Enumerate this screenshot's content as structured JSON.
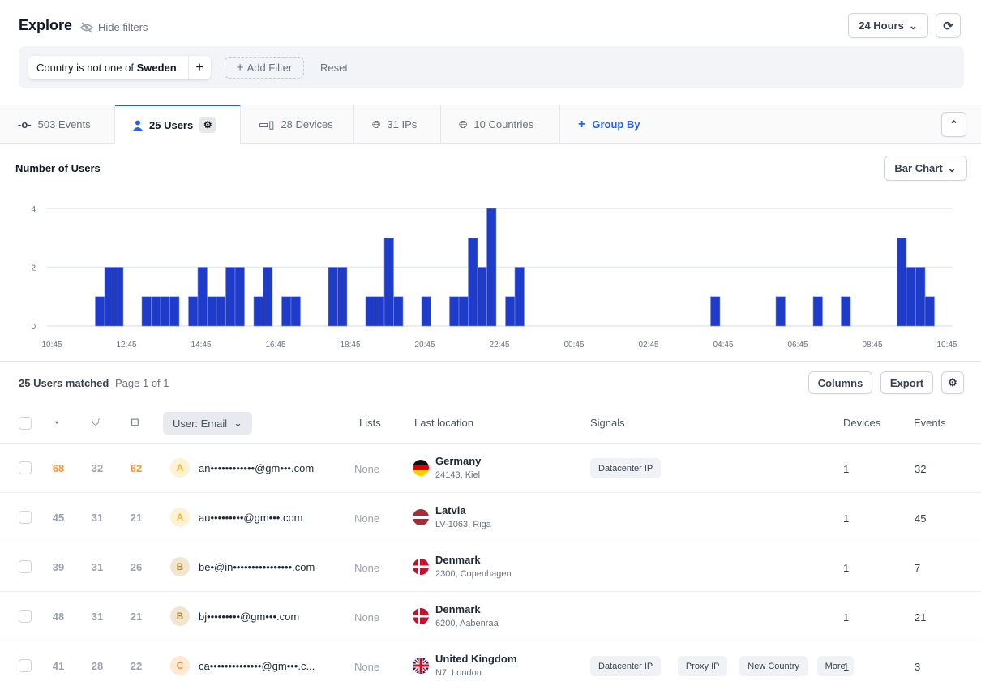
{
  "header": {
    "title": "Explore",
    "hide_filters": "Hide filters",
    "time_range": "24 Hours"
  },
  "filters": {
    "chip_prefix": "Country is not one of",
    "chip_value": "Sweden",
    "add_filter": "Add Filter",
    "reset": "Reset"
  },
  "tabs": [
    {
      "label": "503 Events",
      "icon": "event-icon"
    },
    {
      "label": "25 Users",
      "icon": "user-icon",
      "active": true
    },
    {
      "label": "28 Devices",
      "icon": "devices-icon"
    },
    {
      "label": "31 IPs",
      "icon": "globe-icon"
    },
    {
      "label": "10 Countries",
      "icon": "globe-icon"
    }
  ],
  "group_by": "Group By",
  "chart_title": "Number of Users",
  "chart_type_select": "Bar Chart",
  "chart_data": {
    "type": "bar",
    "title": "Number of Users",
    "ylim": [
      0,
      4
    ],
    "yticks": [
      "0",
      "2",
      "4"
    ],
    "xticks": [
      "10:45",
      "12:45",
      "14:45",
      "16:45",
      "18:45",
      "20:45",
      "22:45",
      "00:45",
      "02:45",
      "04:45",
      "06:45",
      "08:45",
      "10:45"
    ],
    "bucket_minutes": 15,
    "color": "#1f3bc9",
    "grid": true,
    "bars": [
      {
        "t": "12:00",
        "v": 1
      },
      {
        "t": "12:15",
        "v": 2
      },
      {
        "t": "12:30",
        "v": 2
      },
      {
        "t": "13:15",
        "v": 1
      },
      {
        "t": "13:30",
        "v": 1
      },
      {
        "t": "13:45",
        "v": 1
      },
      {
        "t": "14:00",
        "v": 1
      },
      {
        "t": "14:30",
        "v": 1
      },
      {
        "t": "14:45",
        "v": 2
      },
      {
        "t": "15:00",
        "v": 1
      },
      {
        "t": "15:15",
        "v": 1
      },
      {
        "t": "15:30",
        "v": 2
      },
      {
        "t": "15:45",
        "v": 2
      },
      {
        "t": "16:15",
        "v": 1
      },
      {
        "t": "16:30",
        "v": 2
      },
      {
        "t": "17:00",
        "v": 1
      },
      {
        "t": "17:15",
        "v": 1
      },
      {
        "t": "18:15",
        "v": 2
      },
      {
        "t": "18:30",
        "v": 2
      },
      {
        "t": "19:15",
        "v": 1
      },
      {
        "t": "19:30",
        "v": 1
      },
      {
        "t": "19:45",
        "v": 3
      },
      {
        "t": "20:00",
        "v": 1
      },
      {
        "t": "20:45",
        "v": 1
      },
      {
        "t": "21:30",
        "v": 1
      },
      {
        "t": "21:45",
        "v": 1
      },
      {
        "t": "22:00",
        "v": 3
      },
      {
        "t": "22:15",
        "v": 2
      },
      {
        "t": "22:30",
        "v": 4
      },
      {
        "t": "23:00",
        "v": 1
      },
      {
        "t": "23:15",
        "v": 2
      },
      {
        "t": "04:30",
        "v": 1
      },
      {
        "t": "06:15",
        "v": 1
      },
      {
        "t": "07:15",
        "v": 1
      },
      {
        "t": "08:00",
        "v": 1
      },
      {
        "t": "09:30",
        "v": 3
      },
      {
        "t": "09:45",
        "v": 2
      },
      {
        "t": "10:00",
        "v": 2
      },
      {
        "t": "10:15",
        "v": 1
      }
    ]
  },
  "table": {
    "matched": "25 Users matched",
    "page": "Page 1 of 1",
    "columns_btn": "Columns",
    "export_btn": "Export",
    "headers": {
      "email": "User: Email",
      "lists": "Lists",
      "location": "Last location",
      "signals": "Signals",
      "devices": "Devices",
      "events": "Events"
    },
    "rows": [
      {
        "s1": "68",
        "s2": "32",
        "s3": "62",
        "hi1": true,
        "hi3": true,
        "initial": "A",
        "email": "an••••••••••••@gm•••.com",
        "lists": "None",
        "country": "Germany",
        "city": "24143, Kiel",
        "flag": "de",
        "signals": [
          "Datacenter IP"
        ],
        "devices": "1",
        "events": "32"
      },
      {
        "s1": "45",
        "s2": "31",
        "s3": "21",
        "initial": "A",
        "email": "au•••••••••@gm•••.com",
        "lists": "None",
        "country": "Latvia",
        "city": "LV-1063, Riga",
        "flag": "lv",
        "signals": [],
        "devices": "1",
        "events": "45"
      },
      {
        "s1": "39",
        "s2": "31",
        "s3": "26",
        "initial": "B",
        "email": "be•@in••••••••••••••••.com",
        "lists": "None",
        "country": "Denmark",
        "city": "2300, Copenhagen",
        "flag": "dk",
        "signals": [],
        "devices": "1",
        "events": "7"
      },
      {
        "s1": "48",
        "s2": "31",
        "s3": "21",
        "initial": "B",
        "email": "bj•••••••••@gm•••.com",
        "lists": "None",
        "country": "Denmark",
        "city": "6200, Aabenraa",
        "flag": "dk",
        "signals": [],
        "devices": "1",
        "events": "21"
      },
      {
        "s1": "41",
        "s2": "28",
        "s3": "22",
        "initial": "C",
        "email": "ca••••••••••••••@gm•••.c...",
        "lists": "None",
        "country": "United Kingdom",
        "city": "N7, London",
        "flag": "gb",
        "signals": [
          "Datacenter IP",
          "Proxy IP",
          "New Country",
          "More"
        ],
        "devices": "1",
        "events": "3"
      }
    ]
  },
  "colors": {
    "accent": "#2563eb",
    "bar": "#1f3bc9",
    "score_high": "#f59331"
  }
}
